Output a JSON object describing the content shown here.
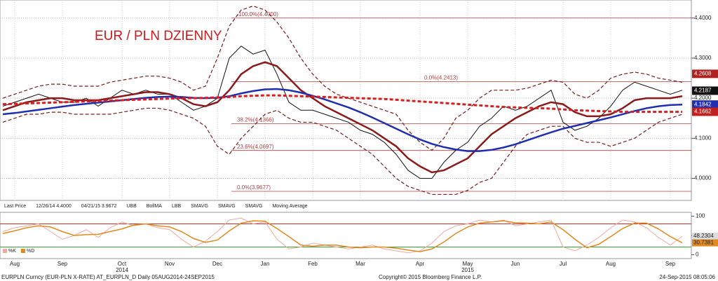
{
  "chart_data": {
    "type": "line",
    "title": "EUR / PLN DZIENNY",
    "categories": [
      null,
      "Aug",
      null,
      null,
      null,
      "Sep",
      null,
      null,
      null,
      null,
      "Oct",
      null,
      null,
      null,
      "Nov",
      null,
      null,
      null,
      "Dec",
      null,
      null,
      null,
      "Jan",
      null,
      null,
      null,
      "Feb",
      null,
      null,
      null,
      "Mar",
      null,
      null,
      null,
      null,
      "Apr",
      null,
      null,
      null,
      "May",
      null,
      null,
      null,
      "Jun",
      null,
      null,
      null,
      "Jul",
      null,
      null,
      null,
      "Aug",
      null,
      null,
      null,
      null,
      "Sep",
      null
    ],
    "year_labels": [
      null,
      null,
      null,
      null,
      null,
      null,
      null,
      null,
      null,
      null,
      "2014",
      null,
      null,
      null,
      null,
      null,
      null,
      null,
      null,
      null,
      null,
      null,
      null,
      null,
      null,
      null,
      null,
      null,
      null,
      null,
      null,
      null,
      null,
      null,
      null,
      null,
      null,
      null,
      null,
      "2015",
      null,
      null,
      null,
      null,
      null,
      null,
      null,
      null,
      null,
      null,
      null,
      null,
      null,
      null,
      null,
      null,
      null,
      null
    ],
    "ylim": [
      3.945,
      4.445
    ],
    "yticks": [
      {
        "value": 4.0,
        "label": "4.0000"
      },
      {
        "value": 4.1,
        "label": "4.1000"
      },
      {
        "value": 4.2,
        "label": "4.2000"
      },
      {
        "value": 4.3,
        "label": "4.3000"
      },
      {
        "value": 4.4,
        "label": "4.4000"
      }
    ],
    "grid": true,
    "series": [
      {
        "name": "Last Price",
        "color": "#111111",
        "dash": false,
        "values": [
          4.18,
          4.19,
          4.2,
          4.21,
          4.2,
          4.19,
          4.19,
          4.2,
          4.18,
          4.2,
          4.22,
          4.21,
          4.22,
          4.21,
          4.21,
          4.19,
          4.17,
          4.18,
          4.2,
          4.3,
          4.33,
          4.31,
          4.32,
          4.26,
          4.19,
          4.17,
          4.17,
          4.16,
          4.15,
          4.14,
          4.12,
          4.11,
          4.09,
          4.06,
          4.02,
          4.0,
          4.0,
          4.04,
          4.07,
          4.09,
          4.13,
          4.15,
          4.18,
          4.17,
          4.18,
          4.2,
          4.22,
          4.14,
          4.12,
          4.13,
          4.15,
          4.18,
          4.22,
          4.24,
          4.23,
          4.22,
          4.21,
          4.22
        ]
      },
      {
        "name": "UBB",
        "color": "#7a1a1a",
        "dash": true,
        "values": [
          4.2,
          4.21,
          4.22,
          4.23,
          4.235,
          4.235,
          4.23,
          4.23,
          4.23,
          4.24,
          4.245,
          4.25,
          4.255,
          4.255,
          4.25,
          4.24,
          4.22,
          4.23,
          4.3,
          4.38,
          4.42,
          4.43,
          4.42,
          4.39,
          4.35,
          4.3,
          4.26,
          4.23,
          4.21,
          4.2,
          4.19,
          4.18,
          4.17,
          4.16,
          4.12,
          4.09,
          4.07,
          4.1,
          4.15,
          4.17,
          4.2,
          4.22,
          4.22,
          4.22,
          4.225,
          4.235,
          4.245,
          4.24,
          4.21,
          4.2,
          4.22,
          4.25,
          4.26,
          4.265,
          4.26,
          4.25,
          4.245,
          4.24
        ]
      },
      {
        "name": "BollMA",
        "color": "#8b1a1a",
        "dash": false,
        "values": [
          4.17,
          4.18,
          4.19,
          4.195,
          4.2,
          4.2,
          4.195,
          4.195,
          4.195,
          4.2,
          4.205,
          4.21,
          4.215,
          4.215,
          4.21,
          4.2,
          4.185,
          4.18,
          4.19,
          4.22,
          4.26,
          4.28,
          4.29,
          4.28,
          4.25,
          4.22,
          4.2,
          4.18,
          4.165,
          4.15,
          4.135,
          4.12,
          4.1,
          4.08,
          4.05,
          4.03,
          4.015,
          4.02,
          4.035,
          4.05,
          4.08,
          4.11,
          4.13,
          4.15,
          4.165,
          4.18,
          4.19,
          4.185,
          4.165,
          4.155,
          4.155,
          4.16,
          4.175,
          4.195,
          4.2,
          4.2,
          4.2,
          4.205
        ]
      },
      {
        "name": "LBB",
        "color": "#7a1a1a",
        "dash": true,
        "values": [
          4.14,
          4.15,
          4.16,
          4.16,
          4.165,
          4.165,
          4.16,
          4.16,
          4.16,
          4.16,
          4.165,
          4.17,
          4.175,
          4.175,
          4.17,
          4.16,
          4.15,
          4.13,
          4.08,
          4.06,
          4.1,
          4.13,
          4.16,
          4.17,
          4.15,
          4.14,
          4.14,
          4.13,
          4.12,
          4.1,
          4.08,
          4.06,
          4.03,
          4.0,
          3.98,
          3.97,
          3.96,
          3.96,
          3.96,
          3.97,
          3.99,
          4.0,
          4.04,
          4.08,
          4.11,
          4.12,
          4.13,
          4.13,
          4.1,
          4.09,
          4.09,
          4.08,
          4.09,
          4.1,
          4.12,
          4.14,
          4.15,
          4.16
        ]
      },
      {
        "name": "SMAVG",
        "color": "#1f2fb0",
        "dash": false,
        "values": [
          4.16,
          4.163,
          4.167,
          4.171,
          4.175,
          4.179,
          4.183,
          4.186,
          4.189,
          4.192,
          4.195,
          4.198,
          4.201,
          4.203,
          4.204,
          4.203,
          4.201,
          4.2,
          4.201,
          4.205,
          4.212,
          4.218,
          4.222,
          4.223,
          4.22,
          4.214,
          4.206,
          4.197,
          4.187,
          4.177,
          4.165,
          4.152,
          4.138,
          4.124,
          4.11,
          4.097,
          4.086,
          4.078,
          4.072,
          4.068,
          4.068,
          4.071,
          4.077,
          4.085,
          4.095,
          4.105,
          4.115,
          4.124,
          4.131,
          4.138,
          4.145,
          4.152,
          4.16,
          4.168,
          4.175,
          4.18,
          4.183,
          4.184
        ]
      },
      {
        "name": "Moving Average",
        "color": "#d42020",
        "dash": true,
        "values": [
          4.185,
          4.186,
          4.187,
          4.188,
          4.189,
          4.19,
          4.191,
          4.192,
          4.193,
          4.194,
          4.195,
          4.196,
          4.197,
          4.198,
          4.199,
          4.2,
          4.2,
          4.201,
          4.202,
          4.203,
          4.205,
          4.206,
          4.207,
          4.207,
          4.206,
          4.205,
          4.204,
          4.203,
          4.202,
          4.201,
          4.2,
          4.199,
          4.198,
          4.196,
          4.194,
          4.192,
          4.19,
          4.188,
          4.186,
          4.184,
          4.182,
          4.18,
          4.178,
          4.177,
          4.176,
          4.175,
          4.174,
          4.172,
          4.17,
          4.169,
          4.168,
          4.167,
          4.166,
          4.166,
          4.166,
          4.166,
          4.166,
          4.166
        ]
      }
    ],
    "fib_levels": [
      {
        "value": 4.4,
        "label": "100.0%(4.4000)"
      },
      {
        "value": 4.2413,
        "label": "0.0%(4.2413)"
      },
      {
        "value": 4.1366,
        "label": "38.2%(4.1366)"
      },
      {
        "value": 4.0697,
        "label": "23.6%(4.0697)"
      },
      {
        "value": 3.9677,
        "label": "0.0%(3.9677)"
      }
    ],
    "price_tags": [
      {
        "value": 4.2608,
        "color": "#b02020"
      },
      {
        "value": 4.2187,
        "color": "#111111"
      },
      {
        "value": 4.1842,
        "color": "#1f2fb0"
      },
      {
        "value": 4.1662,
        "color": "#c02020"
      }
    ],
    "legend_texts": [
      "Last Price",
      "12/26/14 4.4000",
      "04/21/15 3.9672",
      "UBB",
      "BollMA",
      "LBB",
      "SMAVG",
      "SMAVG",
      "SMAVG",
      "Moving Average"
    ],
    "stochastic": {
      "ylim": [
        -10,
        110
      ],
      "yticks": [
        0,
        50,
        100
      ],
      "levels": [
        20,
        80
      ],
      "series": [
        {
          "name": "%K",
          "color": "#f2a8a0",
          "values": [
            60,
            70,
            75,
            80,
            60,
            40,
            50,
            65,
            45,
            70,
            85,
            75,
            80,
            70,
            65,
            40,
            20,
            35,
            60,
            90,
            95,
            80,
            85,
            40,
            15,
            20,
            30,
            25,
            20,
            15,
            20,
            25,
            15,
            10,
            5,
            10,
            30,
            60,
            75,
            80,
            90,
            85,
            90,
            75,
            80,
            85,
            90,
            20,
            10,
            25,
            45,
            70,
            90,
            85,
            70,
            45,
            25,
            48
          ]
        },
        {
          "name": "%D",
          "color": "#e08a20",
          "values": [
            55,
            62,
            70,
            75,
            72,
            60,
            50,
            52,
            53,
            60,
            67,
            77,
            80,
            75,
            72,
            60,
            42,
            32,
            38,
            62,
            82,
            88,
            87,
            68,
            47,
            25,
            22,
            25,
            25,
            20,
            18,
            20,
            20,
            17,
            12,
            8,
            15,
            33,
            55,
            72,
            82,
            85,
            88,
            83,
            82,
            80,
            85,
            65,
            40,
            18,
            27,
            47,
            68,
            82,
            82,
            67,
            47,
            31
          ]
        }
      ],
      "tags": [
        48.2304,
        30.7381
      ]
    },
    "footer_left": "EURPLN Curncy (EUR-PLN X-RATE) AT_EURPLN_D  Daily 05AUG2014-24SEP2015",
    "footer_center": "Copyright© 2015 Bloomberg Finance L.P.",
    "footer_right": "24-Sep-2015 08:05:06"
  }
}
